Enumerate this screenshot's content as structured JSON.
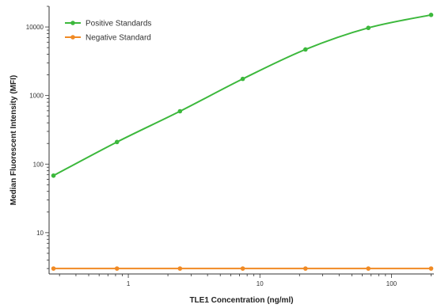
{
  "chart_data": {
    "type": "line",
    "xlabel": "TLE1 Concentration (ng/ml)",
    "ylabel": "Median Fluorescent Intensity (MFI)",
    "xscale": "log",
    "yscale": "log",
    "xlim": [
      0.25,
      210
    ],
    "ylim": [
      2.5,
      20000
    ],
    "x_ticks": [
      1,
      10,
      100
    ],
    "x_tick_labels": [
      "1",
      "10",
      "100"
    ],
    "y_ticks": [
      10,
      100,
      1000,
      10000
    ],
    "y_tick_labels": [
      "10",
      "100",
      "1000",
      "10000"
    ],
    "grid": false,
    "legend_position": "top-left",
    "series": [
      {
        "name": "Positive Standards",
        "color": "#3cb83c",
        "x": [
          0.27,
          0.82,
          2.47,
          7.41,
          22.2,
          66.7,
          200
        ],
        "y": [
          68,
          210,
          590,
          1750,
          4700,
          9700,
          15000
        ]
      },
      {
        "name": "Negative Standard",
        "color": "#f08a24",
        "x": [
          0.27,
          0.82,
          2.47,
          7.41,
          22.2,
          66.7,
          200
        ],
        "y": [
          3,
          3,
          3,
          3,
          3,
          3,
          3
        ]
      }
    ]
  }
}
